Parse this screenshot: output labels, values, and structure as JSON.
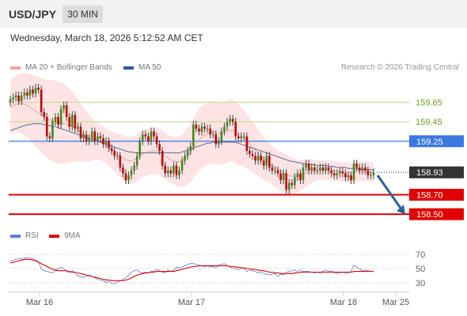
{
  "header": {
    "symbol": "USD/JPY",
    "timeframe": "30 MIN",
    "datetime": "Wednesday, March 18, 2026 5:12:52 AM CET"
  },
  "legend": {
    "ma20_label": "MA 20 + Bollinger Bands",
    "ma20_color": "#f4a3a3",
    "ma50_label": "MA 50",
    "ma50_color": "#2e5c9a",
    "credit": "Research © 2026 Trading Central"
  },
  "rsi_legend": {
    "rsi_label": "RSI",
    "rsi_color": "#5b7fd6",
    "ma9_label": "9MA",
    "ma9_color": "#e00000"
  },
  "chart_data": [
    {
      "type": "candlestick",
      "title": "",
      "x_ticks": [
        "Mar 16",
        "Mar 17",
        "Mar 18",
        "Mar 25"
      ],
      "ylim": [
        158.3,
        159.95
      ],
      "grid": false,
      "levels": [
        {
          "value": 159.65,
          "label": "159.65",
          "kind": "resistance",
          "color": "#c5e0a0",
          "text_color": "#6a9e1f"
        },
        {
          "value": 159.45,
          "label": "159.45",
          "kind": "resistance",
          "color": "#c5e0a0",
          "text_color": "#6a9e1f"
        },
        {
          "value": 159.25,
          "label": "159.25",
          "kind": "pivot",
          "color": "#3a78e0",
          "text_color": "#ffffff"
        },
        {
          "value": 158.93,
          "label": "158.93",
          "kind": "last",
          "color": "#333333",
          "text_color": "#ffffff"
        },
        {
          "value": 158.7,
          "label": "158.70",
          "kind": "support",
          "color": "#e00000",
          "text_color": "#ffffff"
        },
        {
          "value": 158.5,
          "label": "158.50",
          "kind": "support",
          "color": "#e00000",
          "text_color": "#ffffff"
        }
      ],
      "close": [
        159.68,
        159.7,
        159.72,
        159.66,
        159.72,
        159.75,
        159.72,
        159.78,
        159.74,
        159.8,
        159.78,
        159.55,
        159.5,
        159.3,
        159.28,
        159.45,
        159.5,
        159.42,
        159.58,
        159.62,
        159.5,
        159.4,
        159.52,
        159.38,
        159.4,
        159.28,
        159.32,
        159.25,
        159.28,
        159.35,
        159.25,
        159.3,
        159.28,
        159.22,
        159.25,
        159.18,
        159.15,
        159.1,
        159.1,
        158.98,
        158.92,
        158.85,
        158.9,
        158.95,
        159.0,
        159.1,
        159.25,
        159.32,
        159.3,
        159.25,
        159.35,
        159.3,
        159.22,
        159.15,
        159.0,
        158.92,
        158.95,
        158.92,
        159.0,
        158.9,
        158.95,
        159.05,
        159.1,
        159.15,
        159.2,
        159.42,
        159.38,
        159.35,
        159.4,
        159.38,
        159.38,
        159.32,
        159.32,
        159.22,
        159.25,
        159.35,
        159.4,
        159.45,
        159.48,
        159.45,
        159.3,
        159.28,
        159.3,
        159.3,
        159.15,
        159.12,
        159.1,
        159.05,
        159.1,
        159.05,
        159.0,
        159.1,
        158.98,
        158.95,
        158.95,
        158.92,
        158.85,
        158.92,
        158.75,
        158.82,
        158.8,
        158.88,
        158.92,
        158.85,
        158.98,
        159.02,
        158.95,
        158.98,
        158.95,
        158.95,
        158.98,
        158.95,
        158.98,
        158.95,
        158.92,
        158.9,
        158.92,
        158.94,
        158.92,
        158.88,
        158.9,
        158.85,
        159.02,
        158.98,
        158.95,
        158.98,
        158.95,
        158.9,
        158.9,
        158.93
      ],
      "open": [
        159.65,
        159.68,
        159.7,
        159.72,
        159.66,
        159.72,
        159.75,
        159.72,
        159.78,
        159.74,
        159.8,
        159.78,
        159.55,
        159.5,
        159.3,
        159.28,
        159.45,
        159.5,
        159.42,
        159.58,
        159.62,
        159.5,
        159.4,
        159.52,
        159.38,
        159.4,
        159.28,
        159.32,
        159.25,
        159.28,
        159.35,
        159.25,
        159.3,
        159.28,
        159.22,
        159.25,
        159.18,
        159.15,
        159.1,
        159.1,
        158.98,
        158.92,
        158.85,
        158.9,
        158.95,
        159.0,
        159.1,
        159.25,
        159.32,
        159.3,
        159.25,
        159.35,
        159.3,
        159.22,
        159.15,
        159.0,
        158.92,
        158.95,
        158.92,
        159.0,
        158.9,
        158.95,
        159.05,
        159.1,
        159.15,
        159.2,
        159.42,
        159.38,
        159.35,
        159.4,
        159.38,
        159.38,
        159.32,
        159.32,
        159.22,
        159.25,
        159.35,
        159.4,
        159.45,
        159.48,
        159.45,
        159.3,
        159.28,
        159.3,
        159.3,
        159.15,
        159.12,
        159.1,
        159.05,
        159.1,
        159.05,
        159.0,
        159.1,
        158.98,
        158.95,
        158.95,
        158.92,
        158.85,
        158.92,
        158.75,
        158.82,
        158.8,
        158.88,
        158.92,
        158.85,
        158.98,
        159.02,
        158.95,
        158.98,
        158.95,
        158.95,
        158.98,
        158.95,
        158.98,
        158.95,
        158.92,
        158.9,
        158.92,
        158.94,
        158.92,
        158.88,
        158.9,
        158.85,
        159.02,
        158.98,
        158.95,
        158.98,
        158.95,
        158.9,
        158.9
      ],
      "ma20": [
        159.6,
        159.62,
        159.63,
        159.64,
        159.64,
        159.63,
        159.62,
        159.6,
        159.58,
        159.56,
        159.54,
        159.52,
        159.5,
        159.48,
        159.47,
        159.46,
        159.45,
        159.44,
        159.44,
        159.43,
        159.42,
        159.41,
        159.4,
        159.38,
        159.36,
        159.34,
        159.32,
        159.3,
        159.28,
        159.27,
        159.26,
        159.25,
        159.24,
        159.22,
        159.2,
        159.18,
        159.16,
        159.14,
        159.12,
        159.1,
        159.08,
        159.06,
        159.05,
        159.05,
        159.06,
        159.08,
        159.1,
        159.12,
        159.13,
        159.14,
        159.15,
        159.15,
        159.15,
        159.14,
        159.12,
        159.1,
        159.08,
        159.06,
        159.05,
        159.04,
        159.04,
        159.05,
        159.07,
        159.1,
        159.13,
        159.18,
        159.22,
        159.26,
        159.29,
        159.31,
        159.33,
        159.34,
        159.34,
        159.33,
        159.33,
        159.33,
        159.34,
        159.35,
        159.36,
        159.36,
        159.34,
        159.32,
        159.3,
        159.28,
        159.25,
        159.22,
        159.19,
        159.16,
        159.13,
        159.1,
        159.07,
        159.05,
        159.03,
        159.0,
        158.98,
        158.96,
        158.94,
        158.93,
        158.91,
        158.9,
        158.89,
        158.89,
        158.89,
        158.9,
        158.91,
        158.92,
        158.93,
        158.94,
        158.95,
        158.95,
        158.95,
        158.95,
        158.95,
        158.95,
        158.95,
        158.94,
        158.94,
        158.94,
        158.93,
        158.93,
        158.93,
        158.92,
        158.93,
        158.94,
        158.94,
        158.94,
        158.94,
        158.94,
        158.93,
        158.93
      ],
      "bb_width": [
        0.28,
        0.28,
        0.29,
        0.3,
        0.31,
        0.32,
        0.33,
        0.34,
        0.35,
        0.36,
        0.37,
        0.38,
        0.39,
        0.4,
        0.41,
        0.42,
        0.42,
        0.42,
        0.42,
        0.41,
        0.4,
        0.38,
        0.36,
        0.34,
        0.32,
        0.3,
        0.28,
        0.26,
        0.24,
        0.22,
        0.2,
        0.19,
        0.18,
        0.18,
        0.18,
        0.18,
        0.19,
        0.2,
        0.21,
        0.22,
        0.23,
        0.24,
        0.24,
        0.24,
        0.24,
        0.24,
        0.24,
        0.24,
        0.24,
        0.24,
        0.24,
        0.24,
        0.24,
        0.24,
        0.24,
        0.24,
        0.24,
        0.24,
        0.24,
        0.25,
        0.26,
        0.27,
        0.28,
        0.29,
        0.3,
        0.31,
        0.32,
        0.32,
        0.32,
        0.32,
        0.32,
        0.32,
        0.32,
        0.32,
        0.32,
        0.32,
        0.32,
        0.32,
        0.32,
        0.32,
        0.32,
        0.31,
        0.3,
        0.29,
        0.28,
        0.27,
        0.26,
        0.25,
        0.24,
        0.23,
        0.22,
        0.21,
        0.2,
        0.2,
        0.2,
        0.2,
        0.2,
        0.2,
        0.2,
        0.2,
        0.19,
        0.18,
        0.17,
        0.16,
        0.15,
        0.14,
        0.13,
        0.12,
        0.11,
        0.1,
        0.1,
        0.1,
        0.1,
        0.1,
        0.1,
        0.1,
        0.1,
        0.1,
        0.1,
        0.1,
        0.1,
        0.1,
        0.1,
        0.1,
        0.1,
        0.1,
        0.1,
        0.1,
        0.1,
        0.1
      ],
      "ma50": [
        159.36,
        159.37,
        159.38,
        159.39,
        159.4,
        159.41,
        159.42,
        159.42,
        159.43,
        159.43,
        159.43,
        159.43,
        159.42,
        159.42,
        159.41,
        159.4,
        159.4,
        159.39,
        159.38,
        159.37,
        159.36,
        159.35,
        159.34,
        159.33,
        159.32,
        159.31,
        159.3,
        159.29,
        159.28,
        159.27,
        159.26,
        159.25,
        159.24,
        159.23,
        159.22,
        159.21,
        159.2,
        159.19,
        159.18,
        159.17,
        159.16,
        159.15,
        159.14,
        159.14,
        159.13,
        159.13,
        159.13,
        159.13,
        159.13,
        159.13,
        159.13,
        159.13,
        159.13,
        159.13,
        159.13,
        159.13,
        159.13,
        159.13,
        159.13,
        159.13,
        159.13,
        159.14,
        159.15,
        159.16,
        159.17,
        159.18,
        159.19,
        159.2,
        159.21,
        159.22,
        159.23,
        159.23,
        159.24,
        159.24,
        159.24,
        159.24,
        159.24,
        159.24,
        159.24,
        159.24,
        159.24,
        159.23,
        159.22,
        159.21,
        159.2,
        159.19,
        159.18,
        159.17,
        159.16,
        159.15,
        159.14,
        159.13,
        159.12,
        159.11,
        159.1,
        159.09,
        159.08,
        159.07,
        159.06,
        159.05,
        159.04,
        159.04,
        159.03,
        159.03,
        159.02,
        159.02,
        159.01,
        159.01,
        159.01,
        159.0,
        159.0,
        159.0,
        159.0,
        158.99,
        158.99,
        158.99,
        158.98,
        158.98,
        158.98,
        158.98,
        158.97,
        158.97,
        158.97,
        158.97,
        158.96,
        158.96,
        158.96,
        158.96,
        158.96,
        158.95
      ],
      "projection": {
        "from": 158.9,
        "to": 158.5
      }
    },
    {
      "type": "line",
      "title": "",
      "ylim": [
        25,
        75
      ],
      "yticks": [
        "70",
        "50",
        "30"
      ],
      "yticks_values": [
        70,
        50,
        30
      ],
      "series": [
        {
          "name": "RSI",
          "values": [
            60,
            62,
            63,
            64,
            64,
            65,
            65,
            65,
            64,
            62,
            60,
            50,
            47,
            46,
            45,
            44,
            47,
            50,
            52,
            50,
            46,
            44,
            47,
            43,
            40,
            38,
            38,
            39,
            41,
            39,
            37,
            35,
            34,
            33,
            30,
            32,
            29,
            29,
            31,
            33,
            35,
            37,
            40,
            45,
            47,
            48,
            45,
            44,
            45,
            44,
            46,
            46,
            49,
            47,
            45,
            44,
            48,
            46,
            48,
            52,
            51,
            52,
            54,
            56,
            57,
            57,
            56,
            55,
            54,
            52,
            54,
            52,
            53,
            51,
            55,
            56,
            57,
            54,
            52,
            50,
            50,
            48,
            51,
            50,
            46,
            48,
            47,
            46,
            44,
            45,
            43,
            42,
            41,
            42,
            43,
            39,
            42,
            41,
            45,
            46,
            47,
            48,
            46,
            48,
            46,
            46,
            46,
            45,
            44,
            45,
            44,
            46,
            48,
            46,
            47,
            45,
            43,
            44,
            45,
            43,
            44,
            46,
            55,
            52,
            50,
            47,
            48,
            47,
            46,
            46
          ]
        },
        {
          "name": "9MA",
          "values": [
            58,
            59,
            60,
            61,
            62,
            63,
            63,
            63,
            62,
            61,
            59,
            57,
            55,
            53,
            51,
            49,
            48,
            47,
            47,
            47,
            47,
            46,
            45,
            45,
            44,
            43,
            42,
            41,
            40,
            39,
            38,
            37,
            36,
            35,
            34,
            34,
            33,
            33,
            33,
            33,
            33,
            34,
            35,
            37,
            39,
            41,
            42,
            43,
            44,
            44,
            45,
            45,
            46,
            46,
            46,
            46,
            46,
            46,
            46,
            47,
            48,
            49,
            50,
            51,
            52,
            53,
            53,
            54,
            54,
            54,
            54,
            54,
            54,
            54,
            54,
            54,
            54,
            54,
            53,
            53,
            52,
            52,
            51,
            51,
            50,
            50,
            49,
            49,
            48,
            47,
            47,
            46,
            45,
            45,
            44,
            44,
            43,
            43,
            43,
            43,
            43,
            44,
            44,
            45,
            45,
            45,
            45,
            45,
            45,
            45,
            45,
            45,
            45,
            45,
            45,
            45,
            45,
            45,
            45,
            45,
            45,
            45,
            46,
            46,
            46,
            46,
            46,
            46,
            46,
            46
          ]
        }
      ]
    }
  ]
}
